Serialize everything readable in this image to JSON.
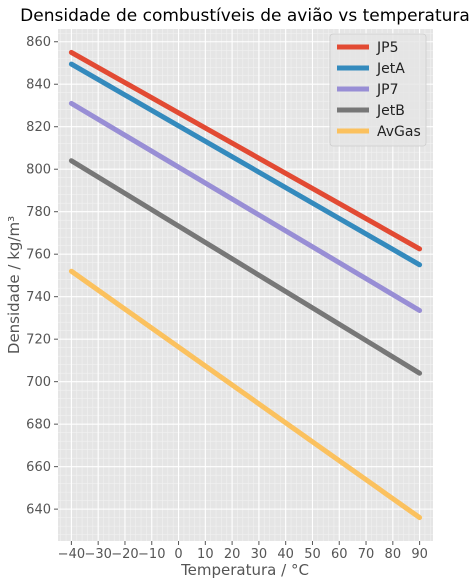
{
  "chart_data": {
    "type": "line",
    "title": "Densidade de combustíveis de avião vs temperatura",
    "xlabel": "Temperatura / °C",
    "ylabel": "Densidade / kg/m³",
    "xlim": [
      -45,
      95
    ],
    "ylim": [
      625,
      866
    ],
    "x_ticks": [
      -40,
      -30,
      -20,
      -10,
      0,
      10,
      20,
      30,
      40,
      50,
      60,
      70,
      80,
      90
    ],
    "x_tick_labels": [
      "−40",
      "−30",
      "−20",
      "−10",
      "0",
      "10",
      "20",
      "30",
      "40",
      "50",
      "60",
      "70",
      "80",
      "90"
    ],
    "y_ticks": [
      640,
      660,
      680,
      700,
      720,
      740,
      760,
      780,
      800,
      820,
      840,
      860
    ],
    "y_tick_labels": [
      "640",
      "660",
      "680",
      "700",
      "720",
      "740",
      "760",
      "780",
      "800",
      "820",
      "840",
      "860"
    ],
    "grid": true,
    "legend_position": "top-right",
    "series": [
      {
        "name": "JP5",
        "color": "#E24A33",
        "x": [
          -40,
          90
        ],
        "y": [
          855,
          762.5
        ]
      },
      {
        "name": "JetA",
        "color": "#348ABD",
        "x": [
          -40,
          90
        ],
        "y": [
          849.5,
          755
        ]
      },
      {
        "name": "JP7",
        "color": "#988ED5",
        "x": [
          -40,
          90
        ],
        "y": [
          831,
          733.5
        ]
      },
      {
        "name": "JetB",
        "color": "#777777",
        "x": [
          -40,
          90
        ],
        "y": [
          804,
          704
        ]
      },
      {
        "name": "AvGas",
        "color": "#FBC15E",
        "x": [
          -40,
          90
        ],
        "y": [
          752,
          636
        ]
      }
    ]
  }
}
